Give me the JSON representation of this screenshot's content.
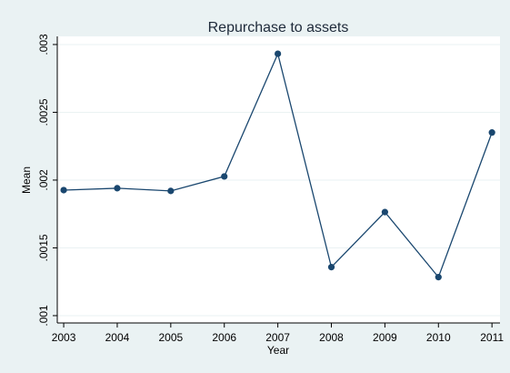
{
  "chart_data": {
    "type": "line",
    "title": "Repurchase to assets",
    "x_label": "Year",
    "y_label": "Mean",
    "x": [
      2003,
      2004,
      2005,
      2006,
      2007,
      2008,
      2009,
      2010,
      2011
    ],
    "series": [
      {
        "name": "Mean",
        "color": "#1a476f",
        "values": [
          0.001926,
          0.00194,
          0.00192,
          0.002027,
          0.002932,
          0.001358,
          0.001764,
          0.001284,
          0.002351
        ]
      }
    ],
    "xlim": [
      2002.88,
      2011.15
    ],
    "xticks": [
      2003,
      2004,
      2005,
      2006,
      2007,
      2008,
      2009,
      2010,
      2011
    ],
    "ylim": [
      0.000946,
      0.00306
    ],
    "yticks": [
      {
        "value": 0.001,
        "label": ".001"
      },
      {
        "value": 0.0015,
        "label": ".0015"
      },
      {
        "value": 0.002,
        "label": ".002"
      },
      {
        "value": 0.0025,
        "label": ".0025"
      },
      {
        "value": 0.003,
        "label": ".003"
      }
    ],
    "grid": true
  }
}
